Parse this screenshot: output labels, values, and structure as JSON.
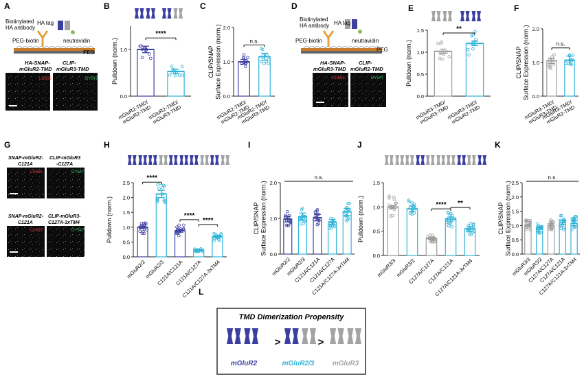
{
  "colors": {
    "r2": "#3b3fa0",
    "r3": "#a3a3a3",
    "cyan": "#2fb3d8",
    "dot_r2": "#6a6fc2",
    "dot_gray": "#9a9a9a",
    "dot_cyan": "#43bfe3"
  },
  "panels": {
    "A": "A",
    "B": "B",
    "C": "C",
    "D": "D",
    "E": "E",
    "F": "F",
    "G": "G",
    "H": "H",
    "I": "I",
    "J": "J",
    "K": "K",
    "L": "L"
  },
  "schematicA": {
    "label_antibody": "Biotinylated\nHA antibody",
    "label_tag": "HA tag",
    "label_peg_biotin": "PEG-biotin",
    "label_neutravidin": "neutravidin",
    "label_peg": "PEG",
    "micro1_title": "HA-SNAP-\nmGluR2-TMD",
    "micro2_title": "CLIP-\nmGluR3-TMD",
    "micro1_dye": "LD655",
    "micro2_dye": "DY547"
  },
  "schematicD": {
    "label_antibody": "Biotinylated\nHA antibody",
    "label_tag": "HA tag",
    "label_peg_biotin": "PEG-biotin",
    "label_neutravidin": "neutravidin",
    "label_peg": "PEG",
    "micro1_title": "HA-SNAP-\nmGluR3-TMD",
    "micro2_title": "CLIP-\nmGluR2-TMD",
    "micro1_dye": "LD655",
    "micro2_dye": "DY547"
  },
  "panelG": {
    "row1_left": "SNAP-mGluR2-\nC121A",
    "row1_right": "CLIP-mGluR3\n-C127A",
    "row1_left_dye": "LD655",
    "row1_right_dye": "DY547",
    "row2_left": "SNAP-mGluR2-\nC121A",
    "row2_right": "CLIP-mGluR3-\nC127A-3xTM4",
    "row2_left_dye": "LD655",
    "row2_right_dye": "DY547"
  },
  "chart_data": [
    {
      "id": "B",
      "type": "bar",
      "ylabel": "Pulldown (norm.)",
      "ylim": [
        0,
        1.5
      ],
      "yticks": [
        "0.0",
        "1.0"
      ],
      "categories": [
        "mGluR2-TMD/\nmGluR2-TMD",
        "mGluR2-TMD/\nmGluR3-TMD"
      ],
      "values": [
        1.0,
        0.53
      ],
      "errors": [
        0.07,
        0.05
      ],
      "colors": [
        "#3b3fa0",
        "#2fb3d8"
      ],
      "annotations": [
        {
          "text": "****",
          "from": 0,
          "to": 1
        }
      ]
    },
    {
      "id": "C",
      "type": "bar",
      "ylabel": "CLIP/SNAP\nSurface Expression (norm.)",
      "ylim": [
        0,
        2.0
      ],
      "yticks": [
        "0.0",
        "1.0",
        "2.0"
      ],
      "categories": [
        "mGluR2-TMD/\nmGluR2-TMD",
        "mGluR2-TMD/\nmGluR3-TMD"
      ],
      "values": [
        1.0,
        1.15
      ],
      "errors": [
        0.07,
        0.1
      ],
      "colors": [
        "#3b3fa0",
        "#2fb3d8"
      ],
      "annotations": [
        {
          "text": "n.s.",
          "from": 0,
          "to": 1
        }
      ]
    },
    {
      "id": "E",
      "type": "bar",
      "ylabel": "Pulldown (norm.)",
      "ylim": [
        0,
        1.5
      ],
      "yticks": [
        "0.0",
        "0.5",
        "1.0",
        "1.5"
      ],
      "categories": [
        "mGluR3-TMD/\nmGluR3-TMD",
        "mGluR3-TMD/\nmGluR2-TMD"
      ],
      "values": [
        1.02,
        1.2
      ],
      "errors": [
        0.05,
        0.05
      ],
      "colors": [
        "#9a9a9a",
        "#2fb3d8"
      ],
      "annotations": [
        {
          "text": "**",
          "from": 0,
          "to": 1
        }
      ]
    },
    {
      "id": "F",
      "type": "bar",
      "ylabel": "CLIP/SNAP\nSurface Expression (norm.)",
      "ylim": [
        0,
        2.0
      ],
      "yticks": [
        "0.0",
        "1.0",
        "2.0"
      ],
      "categories": [
        "mGluR3-TMD/\nmGluR3-TMD",
        "mGluR3-TMD/\nmGluR2-TMD"
      ],
      "values": [
        1.05,
        1.07
      ],
      "errors": [
        0.08,
        0.12
      ],
      "colors": [
        "#9a9a9a",
        "#2fb3d8"
      ],
      "annotations": [
        {
          "text": "n.s.",
          "from": 0,
          "to": 1
        }
      ]
    },
    {
      "id": "H",
      "type": "bar",
      "ylabel": "Pulldown (norm.)",
      "ylim": [
        0,
        2.5
      ],
      "yticks": [
        "0.0",
        "0.5",
        "1.0",
        "1.5",
        "2.0",
        "2.5"
      ],
      "categories": [
        "mGluR2/2",
        "mGluR2/3",
        "C121A/C121A",
        "C121A/C127A",
        "C121A/C127A-3xTM4"
      ],
      "values": [
        1.0,
        2.12,
        0.88,
        0.22,
        0.68
      ],
      "errors": [
        0.04,
        0.12,
        0.05,
        0.03,
        0.04
      ],
      "colors": [
        "#3b3fa0",
        "#2fb3d8",
        "#3b3fa0",
        "#2fb3d8",
        "#2fb3d8"
      ],
      "annotations": [
        {
          "text": "****",
          "from": 0,
          "to": 1
        },
        {
          "text": "****",
          "from": 2,
          "to": 3
        },
        {
          "text": "****",
          "from": 3,
          "to": 4
        }
      ]
    },
    {
      "id": "I",
      "type": "bar",
      "ylabel": "CLIP/SNAP\nSurface Expression (norm.)",
      "ylim": [
        0,
        2.0
      ],
      "yticks": [
        "0.0",
        "1.0",
        "2.0"
      ],
      "categories": [
        "mGluR2/2",
        "mGluR2/3",
        "C121A/C121A",
        "C121A/C127A",
        "C121A/C127A-3xTM4"
      ],
      "values": [
        0.98,
        1.05,
        1.02,
        0.9,
        1.18
      ],
      "errors": [
        0.08,
        0.1,
        0.09,
        0.07,
        0.1
      ],
      "colors": [
        "#3b3fa0",
        "#2fb3d8",
        "#3b3fa0",
        "#2fb3d8",
        "#2fb3d8"
      ],
      "annotations": [
        {
          "text": "n.s.",
          "from": 0,
          "to": 4
        }
      ]
    },
    {
      "id": "J",
      "type": "bar",
      "ylabel": "Pulldown (norm.)",
      "ylim": [
        0,
        1.5
      ],
      "yticks": [
        "0.0",
        "0.5",
        "1.0",
        "1.5"
      ],
      "categories": [
        "mGluR3/3",
        "mGluR3/2",
        "C127A/C127A",
        "C127A/C121A",
        "C127A/C121A-3xTM4"
      ],
      "values": [
        1.0,
        0.96,
        0.35,
        0.75,
        0.55
      ],
      "errors": [
        0.03,
        0.06,
        0.02,
        0.04,
        0.05
      ],
      "colors": [
        "#9a9a9a",
        "#2fb3d8",
        "#9a9a9a",
        "#2fb3d8",
        "#2fb3d8"
      ],
      "annotations": [
        {
          "text": "****",
          "from": 2,
          "to": 3
        },
        {
          "text": "**",
          "from": 3,
          "to": 4
        }
      ]
    },
    {
      "id": "K",
      "type": "bar",
      "ylabel": "CLIP/SNAP\nSurface Expression (norm.)",
      "ylim": [
        0,
        2.5
      ],
      "yticks": [
        "0.0",
        "0.5",
        "1.0",
        "1.5",
        "2.0",
        "2.5"
      ],
      "categories": [
        "mGluR3/3",
        "mGluR3/2",
        "C127A/C127A",
        "C127A/C121A",
        "C127A/C121A-3xTM4"
      ],
      "values": [
        1.0,
        0.92,
        1.0,
        1.1,
        1.08
      ],
      "errors": [
        0.05,
        0.06,
        0.06,
        0.07,
        0.08
      ],
      "colors": [
        "#9a9a9a",
        "#2fb3d8",
        "#9a9a9a",
        "#2fb3d8",
        "#2fb3d8"
      ],
      "annotations": [
        {
          "text": "n.s.",
          "from": 0,
          "to": 4
        }
      ]
    }
  ],
  "panelL": {
    "title": "TMD Dimerization Propensity",
    "gt": ">",
    "label1": "mGluR2",
    "label2": "mGluR2/3",
    "label3": "mGluR3"
  }
}
